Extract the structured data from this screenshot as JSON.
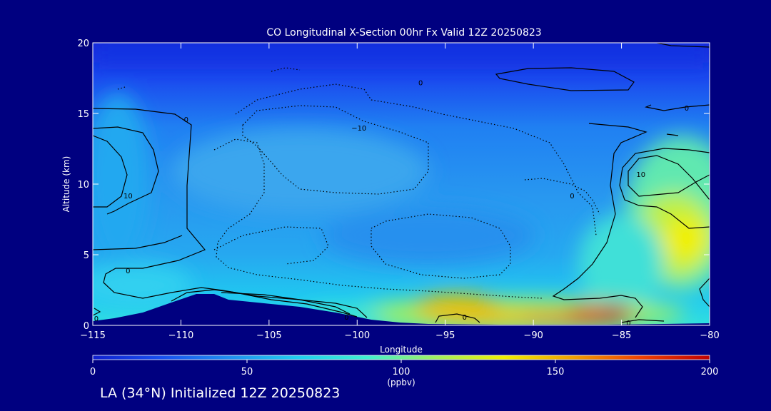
{
  "chart_data": {
    "type": "heatmap",
    "title": "CO Longitudinal X-Section 00hr  Fx Valid 12Z 20250823",
    "xlabel": "Longitude",
    "ylabel": "Altitude (km)",
    "xlim": [
      -115,
      -80
    ],
    "ylim": [
      0,
      20
    ],
    "x_ticks": [
      "−115",
      "−110",
      "−105",
      "−100",
      "−95",
      "−90",
      "−85",
      "−80"
    ],
    "x_tick_values": [
      -115,
      -110,
      -105,
      -100,
      -95,
      -90,
      -85,
      -80
    ],
    "y_ticks": [
      "0",
      "5",
      "10",
      "15",
      "20"
    ],
    "y_tick_values": [
      0,
      5,
      10,
      15,
      20
    ],
    "colorbar": {
      "min": 0,
      "max": 200,
      "ticks": [
        "0",
        "50",
        "100",
        "150",
        "200"
      ],
      "tick_values": [
        0,
        50,
        100,
        150,
        200
      ],
      "unit": "(ppbv)",
      "colors": [
        "#1020d0",
        "#1850f0",
        "#2090f0",
        "#20d0f0",
        "#40f0d0",
        "#a0f060",
        "#f0f000",
        "#f0a000",
        "#f04000",
        "#c00000"
      ]
    },
    "contour_labels": [
      {
        "text": "0",
        "lon": -109.7,
        "alt": 14.6
      },
      {
        "text": "−10",
        "lon": -99.9,
        "alt": 14.0
      },
      {
        "text": "0",
        "lon": -96.4,
        "alt": 17.2
      },
      {
        "text": "0",
        "lon": -81.3,
        "alt": 15.4
      },
      {
        "text": "10",
        "lon": -113.0,
        "alt": 9.2
      },
      {
        "text": "10",
        "lon": -83.9,
        "alt": 10.7
      },
      {
        "text": "0",
        "lon": -87.8,
        "alt": 9.2
      },
      {
        "text": "0",
        "lon": -113.0,
        "alt": 3.9
      },
      {
        "text": "0",
        "lon": -114.8,
        "alt": 0.5
      },
      {
        "text": "0",
        "lon": -100.6,
        "alt": 0.6
      },
      {
        "text": "0",
        "lon": -93.9,
        "alt": 0.6
      },
      {
        "text": "0",
        "lon": -84.6,
        "alt": 0.2
      }
    ]
  },
  "footer_text": "LA (34°N) Initialized 12Z 20250823"
}
